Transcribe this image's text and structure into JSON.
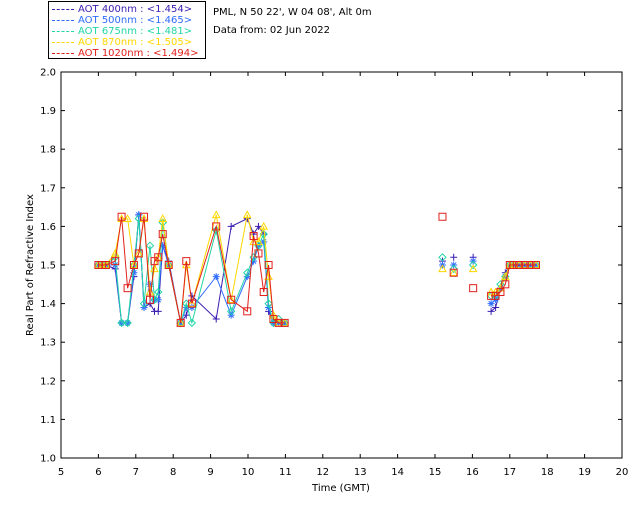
{
  "legend": [
    {
      "label": "AOT  400nm : <1.454>",
      "color": "#3a1cb0"
    },
    {
      "label": "AOT  500nm : <1.465>",
      "color": "#2f6cff"
    },
    {
      "label": "AOT  675nm : <1.481>",
      "color": "#22d6a6"
    },
    {
      "label": "AOT  870nm : <1.505>",
      "color": "#ffd700"
    },
    {
      "label": "AOT 1020nm : <1.494>",
      "color": "#e0201c"
    }
  ],
  "info": {
    "site": "PML, N 50 22', W 04 08', Alt 0m",
    "date": "Data from: 02 Jun 2022"
  },
  "chart_data": {
    "type": "scatter",
    "xlabel": "Time (GMT)",
    "ylabel": "Real Part of Refractive Index",
    "xlim": [
      5,
      20
    ],
    "ylim": [
      1.0,
      2.0
    ],
    "xticks": [
      "5",
      "6",
      "7",
      "8",
      "9",
      "10",
      "11",
      "12",
      "13",
      "14",
      "15",
      "16",
      "17",
      "18",
      "19",
      "20"
    ],
    "yticks": [
      "1.0",
      "1.1",
      "1.2",
      "1.3",
      "1.4",
      "1.5",
      "1.6",
      "1.7",
      "1.8",
      "1.9",
      "2.0"
    ],
    "x": [
      6.0,
      6.1,
      6.2,
      6.45,
      6.62,
      6.78,
      6.95,
      7.08,
      7.22,
      7.38,
      7.5,
      7.6,
      7.72,
      7.88,
      8.2,
      8.35,
      8.5,
      9.15,
      9.55,
      9.98,
      10.15,
      10.28,
      10.42,
      10.55,
      10.68,
      10.82,
      10.98,
      15.2,
      15.5,
      16.02,
      16.5,
      16.62,
      16.75,
      16.88,
      17.0,
      17.1,
      17.25,
      17.4,
      17.55,
      17.7
    ],
    "series": [
      {
        "name": "400nm",
        "marker": "plus",
        "connected": true,
        "values": [
          1.5,
          1.5,
          1.5,
          1.49,
          1.35,
          1.35,
          1.47,
          1.63,
          1.39,
          1.4,
          1.38,
          1.38,
          1.55,
          1.51,
          1.35,
          1.37,
          1.42,
          1.36,
          1.6,
          1.62,
          1.58,
          1.6,
          1.58,
          1.38,
          1.35,
          1.35,
          1.35,
          1.51,
          1.52,
          1.52,
          1.38,
          1.39,
          1.44,
          1.48,
          1.5,
          1.5,
          1.5,
          1.5,
          1.5,
          1.5
        ]
      },
      {
        "name": "500nm",
        "marker": "asterisk",
        "connected": true,
        "values": [
          1.5,
          1.5,
          1.5,
          1.5,
          1.35,
          1.35,
          1.48,
          1.63,
          1.39,
          1.45,
          1.41,
          1.41,
          1.55,
          1.5,
          1.35,
          1.39,
          1.39,
          1.47,
          1.37,
          1.47,
          1.51,
          1.55,
          1.56,
          1.39,
          1.35,
          1.35,
          1.35,
          1.5,
          1.5,
          1.51,
          1.4,
          1.41,
          1.44,
          1.47,
          1.5,
          1.5,
          1.5,
          1.5,
          1.5,
          1.5
        ]
      },
      {
        "name": "675nm",
        "marker": "diamond",
        "connected": true,
        "values": [
          1.5,
          1.5,
          1.5,
          1.52,
          1.35,
          1.35,
          1.5,
          1.62,
          1.4,
          1.55,
          1.41,
          1.43,
          1.61,
          1.5,
          1.35,
          1.4,
          1.35,
          1.59,
          1.38,
          1.48,
          1.52,
          1.55,
          1.58,
          1.4,
          1.35,
          1.36,
          1.35,
          1.52,
          1.49,
          1.5,
          1.42,
          1.42,
          1.45,
          1.47,
          1.5,
          1.5,
          1.5,
          1.5,
          1.5,
          1.5
        ]
      },
      {
        "name": "870nm",
        "marker": "triangle",
        "connected": true,
        "values": [
          1.5,
          1.5,
          1.5,
          1.53,
          1.62,
          1.62,
          1.5,
          1.53,
          1.62,
          1.43,
          1.49,
          1.52,
          1.62,
          1.5,
          1.35,
          1.5,
          1.4,
          1.63,
          1.41,
          1.63,
          1.56,
          1.56,
          1.6,
          1.47,
          1.37,
          1.35,
          1.35,
          1.49,
          1.48,
          1.49,
          1.43,
          1.43,
          1.44,
          1.47,
          1.5,
          1.5,
          1.5,
          1.5,
          1.5,
          1.5
        ]
      },
      {
        "name": "1020nm",
        "marker": "square",
        "connected": true,
        "values": [
          1.5,
          1.5,
          1.5,
          1.51,
          1.625,
          1.44,
          1.5,
          1.53,
          1.625,
          1.41,
          1.51,
          1.52,
          1.58,
          1.5,
          1.35,
          1.51,
          1.4,
          1.6,
          1.41,
          1.38,
          1.575,
          1.53,
          1.43,
          1.5,
          1.36,
          1.35,
          1.35,
          1.625,
          1.48,
          1.44,
          1.42,
          1.42,
          1.43,
          1.45,
          1.5,
          1.5,
          1.5,
          1.5,
          1.5,
          1.5
        ]
      }
    ],
    "segments": [
      [
        0,
        26
      ],
      [
        30,
        39
      ]
    ]
  }
}
